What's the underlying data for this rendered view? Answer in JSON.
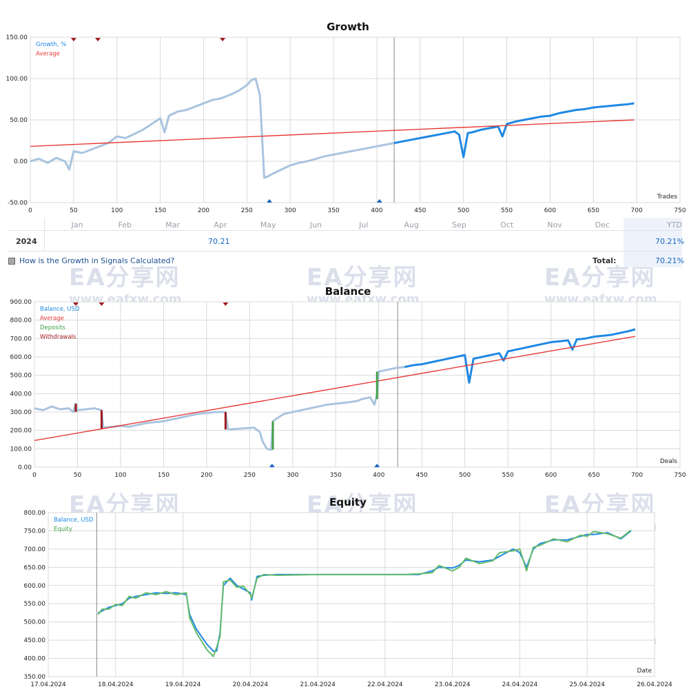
{
  "growth_table": {
    "months": [
      "Jan",
      "Feb",
      "Mar",
      "Apr",
      "May",
      "Jun",
      "Jul",
      "Aug",
      "Sep",
      "Oct",
      "Nov",
      "Dec"
    ],
    "ytd_label": "YTD",
    "year": "2024",
    "may_value": "70.21",
    "ytd_value": "70.21%",
    "link_text": "How is the Growth in Signals Calculated?",
    "total_label": "Total:",
    "total_value": "70.21%"
  },
  "watermark": {
    "text": "EA分享网",
    "url": "www.eafxw.com"
  },
  "chart_data": [
    {
      "type": "line",
      "title": "Growth",
      "xlabel": "Trades",
      "xlim": [
        0,
        750
      ],
      "ylim": [
        -50,
        150
      ],
      "xticks": [
        0,
        50,
        100,
        150,
        200,
        250,
        300,
        350,
        400,
        450,
        500,
        550,
        600,
        650,
        700,
        750
      ],
      "yticks": [
        -50,
        0,
        50,
        100,
        150
      ],
      "ytick_labels": [
        "-50.00",
        "0.00",
        "50.00",
        "100.00",
        "150.00"
      ],
      "legend": [
        "Growth, %",
        "Average"
      ],
      "legend_placement": "top-left",
      "divider_x": 420,
      "series": [
        {
          "name": "Growth, %",
          "color": "#1e88e5",
          "faded_before": 420,
          "x": [
            0,
            10,
            20,
            30,
            40,
            45,
            50,
            60,
            70,
            80,
            90,
            100,
            110,
            120,
            130,
            140,
            150,
            155,
            160,
            170,
            180,
            190,
            200,
            210,
            220,
            230,
            240,
            250,
            255,
            260,
            265,
            270,
            275,
            280,
            290,
            300,
            310,
            320,
            330,
            340,
            350,
            360,
            370,
            380,
            390,
            400,
            410,
            420,
            430,
            440,
            450,
            460,
            470,
            480,
            490,
            495,
            500,
            505,
            510,
            520,
            530,
            540,
            545,
            550,
            560,
            570,
            580,
            590,
            600,
            610,
            620,
            630,
            640,
            650,
            660,
            670,
            680,
            690,
            697
          ],
          "y": [
            0,
            3,
            -2,
            4,
            0,
            -10,
            12,
            10,
            14,
            18,
            22,
            30,
            28,
            33,
            38,
            45,
            52,
            35,
            55,
            60,
            62,
            66,
            70,
            74,
            76,
            80,
            85,
            92,
            98,
            100,
            80,
            -20,
            -18,
            -15,
            -10,
            -5,
            -2,
            0,
            3,
            6,
            8,
            10,
            12,
            14,
            16,
            18,
            20,
            22,
            24,
            26,
            28,
            30,
            32,
            34,
            36,
            32,
            5,
            34,
            35,
            38,
            40,
            42,
            30,
            45,
            48,
            50,
            52,
            54,
            55,
            58,
            60,
            62,
            63,
            65,
            66,
            67,
            68,
            69,
            70
          ]
        },
        {
          "name": "Average",
          "color": "#e53935",
          "x": [
            0,
            697
          ],
          "y": [
            18,
            50
          ]
        }
      ],
      "markers_top": [
        50,
        78,
        222
      ],
      "markers_bottom": [
        276,
        403
      ]
    },
    {
      "type": "line",
      "title": "Balance",
      "xlabel": "Deals",
      "xlim": [
        0,
        750
      ],
      "ylim": [
        0,
        900
      ],
      "xticks": [
        0,
        50,
        100,
        150,
        200,
        250,
        300,
        350,
        400,
        450,
        500,
        550,
        600,
        650,
        700,
        750
      ],
      "yticks": [
        0,
        100,
        200,
        300,
        400,
        500,
        600,
        700,
        800,
        900
      ],
      "ytick_labels": [
        "0.00",
        "100.00",
        "200.00",
        "300.00",
        "400.00",
        "500.00",
        "600.00",
        "700.00",
        "800.00",
        "900.00"
      ],
      "legend": [
        "Balance, USD",
        "Average",
        "Deposits",
        "Withdrawals"
      ],
      "legend_placement": "top-left",
      "divider_x": 422,
      "series": [
        {
          "name": "Balance, USD",
          "color": "#1e88e5",
          "faded_before": 422,
          "x": [
            0,
            10,
            20,
            30,
            40,
            45,
            48,
            50,
            60,
            70,
            78,
            80,
            90,
            100,
            110,
            120,
            130,
            150,
            170,
            190,
            200,
            210,
            222,
            225,
            240,
            255,
            262,
            265,
            270,
            275,
            277,
            280,
            290,
            300,
            320,
            340,
            360,
            375,
            380,
            390,
            395,
            398,
            400,
            410,
            420,
            430,
            440,
            450,
            460,
            470,
            480,
            490,
            500,
            505,
            510,
            520,
            530,
            540,
            545,
            550,
            560,
            570,
            580,
            590,
            600,
            610,
            620,
            625,
            630,
            640,
            650,
            660,
            670,
            680,
            690,
            698
          ],
          "y": [
            320,
            310,
            330,
            315,
            320,
            300,
            345,
            310,
            315,
            320,
            310,
            215,
            220,
            225,
            220,
            230,
            240,
            250,
            270,
            290,
            295,
            300,
            300,
            205,
            210,
            215,
            190,
            140,
            100,
            95,
            250,
            260,
            290,
            300,
            320,
            340,
            350,
            360,
            370,
            380,
            340,
            400,
            520,
            530,
            540,
            545,
            555,
            560,
            570,
            580,
            590,
            600,
            610,
            460,
            590,
            600,
            610,
            620,
            580,
            630,
            640,
            650,
            660,
            670,
            680,
            685,
            690,
            640,
            695,
            700,
            710,
            715,
            720,
            730,
            740,
            750
          ]
        },
        {
          "name": "Average",
          "color": "#e53935",
          "x": [
            0,
            698
          ],
          "y": [
            145,
            712
          ]
        },
        {
          "name": "Deposits",
          "color": "#43a047",
          "segments": [
            [
              277,
              95,
              277,
              250
            ],
            [
              398,
              370,
              398,
              520
            ]
          ]
        },
        {
          "name": "Withdrawals",
          "color": "#a1181b",
          "segments": [
            [
              48,
              345,
              48,
              300
            ],
            [
              78,
              310,
              78,
              210
            ],
            [
              222,
              300,
              222,
              205
            ]
          ]
        }
      ],
      "markers_top": [
        48,
        78,
        222
      ],
      "markers_bottom": [
        276,
        398
      ]
    },
    {
      "type": "line",
      "title": "Equity",
      "xlabel": "Date",
      "xlim": [
        0,
        9
      ],
      "ylim": [
        350,
        800
      ],
      "xtick_labels": [
        "17.04.2024",
        "18.04.2024",
        "19.04.2024",
        "20.04.2024",
        "21.04.2024",
        "22.04.2024",
        "23.04.2024",
        "24.04.2024",
        "25.04.2024",
        "26.04.2024"
      ],
      "yticks": [
        350,
        400,
        450,
        500,
        550,
        600,
        650,
        700,
        750,
        800
      ],
      "ytick_labels": [
        "350.00",
        "400.00",
        "450.00",
        "500.00",
        "550.00",
        "600.00",
        "650.00",
        "700.00",
        "750.00",
        "800.00"
      ],
      "legend": [
        "Balance, USD",
        "Equity"
      ],
      "legend_placement": "top-left",
      "divider_x": 0.72,
      "series": [
        {
          "name": "Balance, USD",
          "color": "#1e88e5",
          "x": [
            0.74,
            0.8,
            0.9,
            1.0,
            1.1,
            1.2,
            1.3,
            1.45,
            1.6,
            1.75,
            1.9,
            2.05,
            2.1,
            2.2,
            2.35,
            2.45,
            2.5,
            2.55,
            2.6,
            2.7,
            2.8,
            2.9,
            3.0,
            3.02,
            3.1,
            3.2,
            3.4,
            4.0,
            4.5,
            5.0,
            5.3,
            5.5,
            5.7,
            5.8,
            6.0,
            6.1,
            6.2,
            6.4,
            6.6,
            6.7,
            6.9,
            7.0,
            7.1,
            7.2,
            7.3,
            7.5,
            7.7,
            7.9,
            8.0,
            8.1,
            8.3,
            8.5,
            8.65
          ],
          "y": [
            525,
            530,
            540,
            545,
            550,
            565,
            570,
            575,
            580,
            578,
            580,
            575,
            520,
            480,
            440,
            420,
            420,
            470,
            600,
            620,
            600,
            590,
            580,
            560,
            625,
            628,
            630,
            630,
            630,
            630,
            630,
            630,
            640,
            650,
            648,
            655,
            670,
            665,
            670,
            680,
            700,
            690,
            650,
            700,
            715,
            725,
            725,
            735,
            740,
            740,
            745,
            728,
            750
          ]
        },
        {
          "name": "Equity",
          "color": "#66bb6a",
          "x": [
            0.74,
            0.8,
            0.9,
            1.0,
            1.1,
            1.2,
            1.3,
            1.45,
            1.6,
            1.75,
            1.9,
            2.05,
            2.1,
            2.2,
            2.35,
            2.45,
            2.5,
            2.55,
            2.6,
            2.7,
            2.8,
            2.9,
            3.0,
            3.02,
            3.1,
            3.2,
            3.4,
            4.0,
            4.5,
            5.0,
            5.3,
            5.5,
            5.7,
            5.8,
            6.0,
            6.1,
            6.2,
            6.4,
            6.6,
            6.7,
            6.9,
            7.0,
            7.1,
            7.2,
            7.3,
            7.5,
            7.7,
            7.9,
            8.0,
            8.1,
            8.3,
            8.5,
            8.65
          ],
          "y": [
            520,
            535,
            535,
            548,
            545,
            570,
            565,
            580,
            575,
            583,
            575,
            580,
            510,
            470,
            425,
            405,
            430,
            460,
            610,
            615,
            595,
            598,
            575,
            565,
            620,
            630,
            628,
            630,
            630,
            630,
            630,
            632,
            635,
            655,
            640,
            650,
            675,
            660,
            668,
            690,
            695,
            700,
            640,
            705,
            710,
            728,
            720,
            738,
            735,
            748,
            742,
            730,
            752
          ]
        }
      ]
    }
  ]
}
